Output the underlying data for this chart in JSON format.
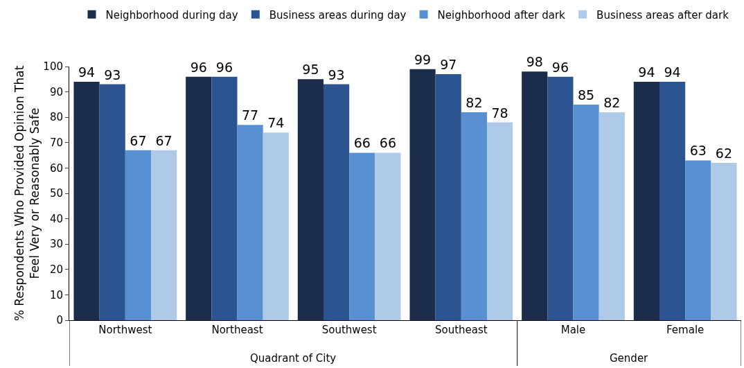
{
  "chart_data": {
    "type": "bar",
    "ylabel": "% Respondents Who Provided Opinion That\nFeel Very or Reasonably Safe",
    "categories": [
      "Northwest",
      "Northeast",
      "Southwest",
      "Southeast",
      "Male",
      "Female"
    ],
    "series": [
      {
        "name": "Neighborhood during day",
        "color": "#1b2d4a",
        "values": [
          94,
          96,
          95,
          99,
          98,
          94
        ]
      },
      {
        "name": "Business areas during day",
        "color": "#2b5491",
        "values": [
          93,
          96,
          93,
          97,
          96,
          94
        ]
      },
      {
        "name": "Neighborhood after dark",
        "color": "#5890d2",
        "values": [
          67,
          77,
          66,
          82,
          85,
          63
        ]
      },
      {
        "name": "Business areas after dark",
        "color": "#afcae8",
        "values": [
          67,
          74,
          66,
          78,
          82,
          62
        ]
      }
    ],
    "ylim": [
      0,
      100
    ],
    "yticks": [
      0,
      10,
      20,
      30,
      40,
      50,
      60,
      70,
      80,
      90,
      100
    ],
    "grid": false,
    "legend": "top",
    "data_labels": true,
    "annotations": [
      "Quadrant of City",
      "Gender"
    ]
  }
}
